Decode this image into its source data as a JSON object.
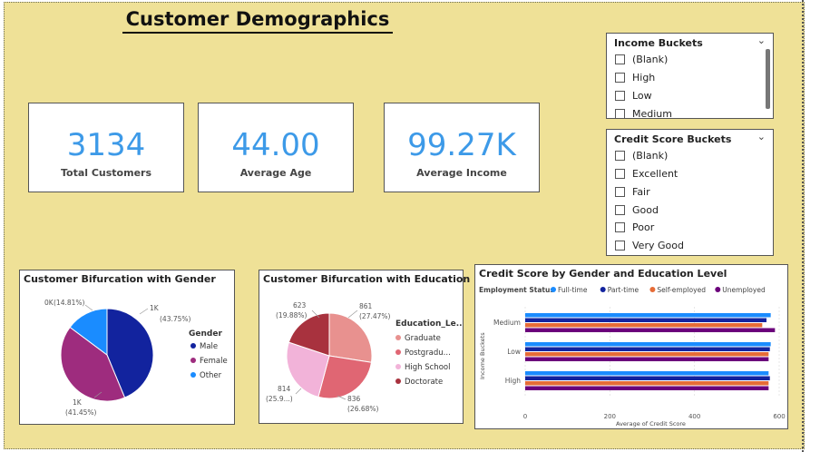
{
  "page_title": "Customer Demographics",
  "kpis": [
    {
      "value": "3134",
      "label": "Total Customers"
    },
    {
      "value": "44.00",
      "label": "Average Age"
    },
    {
      "value": "99.27K",
      "label": "Average Income"
    }
  ],
  "income_slicer": {
    "title": "Income Buckets",
    "items": [
      "(Blank)",
      "High",
      "Low",
      "Medium"
    ]
  },
  "credit_slicer": {
    "title": "Credit Score Buckets",
    "items": [
      "(Blank)",
      "Excellent",
      "Fair",
      "Good",
      "Poor",
      "Very Good"
    ]
  },
  "icons": [
    "chevron-down-icon",
    "checkbox-icon"
  ],
  "chart_data": [
    {
      "type": "pie",
      "title": "Customer Bifurcation with Gender",
      "legend_title": "Gender",
      "legend_position": "right",
      "slices": [
        {
          "name": "Male",
          "label_value": "1K",
          "label_pct": "(43.75%)",
          "pct": 43.75,
          "color": "#12239e"
        },
        {
          "name": "Female",
          "label_value": "1K",
          "label_pct": "(41.45%)",
          "pct": 41.45,
          "color": "#9e2c7e"
        },
        {
          "name": "Other",
          "label_value": "0K",
          "label_pct": "(14.81%)",
          "pct": 14.81,
          "color": "#1a8cff"
        }
      ]
    },
    {
      "type": "pie",
      "title": "Customer Bifurcation with Education Level",
      "legend_title": "Education_Le...",
      "legend_position": "right",
      "slices": [
        {
          "name": "Graduate",
          "label_value": "861",
          "label_pct": "(27.47%)",
          "pct": 27.47,
          "color": "#e8918f"
        },
        {
          "name": "Postgradu...",
          "label_value": "836",
          "label_pct": "(26.68%)",
          "pct": 26.68,
          "color": "#e06673"
        },
        {
          "name": "High School",
          "label_value": "814",
          "label_pct": "(25.9...)",
          "pct": 25.97,
          "color": "#f2b3d9"
        },
        {
          "name": "Doctorate",
          "label_value": "623",
          "label_pct": "(19.88%)",
          "pct": 19.88,
          "color": "#a8323e"
        }
      ]
    },
    {
      "type": "bar",
      "orientation": "horizontal",
      "title": "Credit Score by Gender and Education Level",
      "legend_title": "Employment Status",
      "legend_position": "top",
      "categories": [
        "Medium",
        "Low",
        "High"
      ],
      "xlabel": "Average of Credit Score",
      "ylabel": "Income Buckets",
      "xlim": [
        0,
        600
      ],
      "xticks": [
        0,
        200,
        400,
        600
      ],
      "series": [
        {
          "name": "Full-time",
          "color": "#1a8cff",
          "values": [
            580,
            580,
            575
          ]
        },
        {
          "name": "Part-time",
          "color": "#12239e",
          "values": [
            570,
            578,
            578
          ]
        },
        {
          "name": "Self-employed",
          "color": "#e66c37",
          "values": [
            560,
            575,
            575
          ]
        },
        {
          "name": "Unemployed",
          "color": "#6b007b",
          "values": [
            590,
            575,
            575
          ]
        }
      ]
    }
  ]
}
